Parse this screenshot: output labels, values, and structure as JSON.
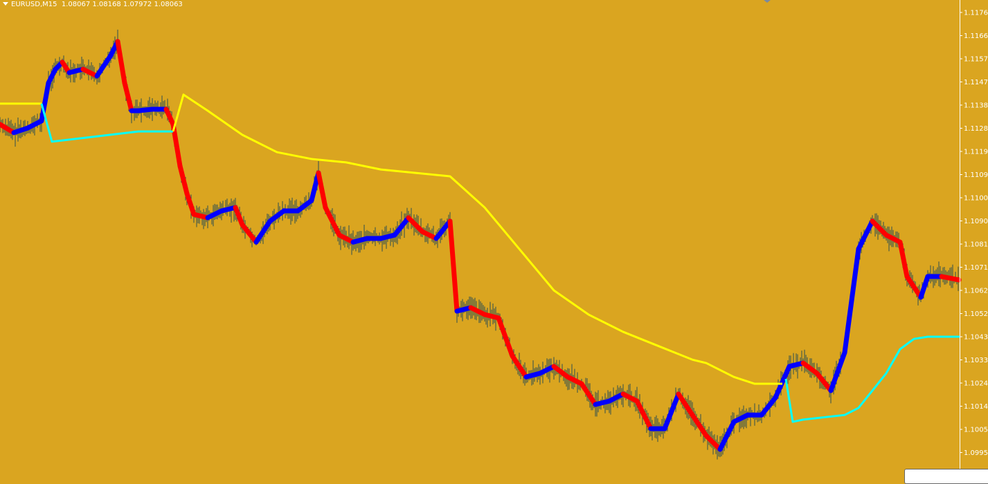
{
  "header": {
    "symbol": "EURUSD,M15",
    "ohlc": "1.08067 1.08168 1.07972 1.08063"
  },
  "colors": {
    "background": "#DAA520",
    "bull": "#0000FF",
    "bear": "#FF0000",
    "wick": "#2F4F4F",
    "ma_up": "#FFFF00",
    "ma_down": "#00FFFF",
    "axis": "#FFFFFF"
  },
  "chart_data": {
    "type": "line",
    "title": "",
    "ylim": [
      1.0991,
      1.1181
    ],
    "y_ticks": [
      "1.11760",
      "1.11665",
      "1.11570",
      "1.11475",
      "1.11380",
      "1.11285",
      "1.11190",
      "1.11095",
      "1.11000",
      "1.10905",
      "1.10810",
      "1.10715",
      "1.10620",
      "1.10525",
      "1.10430",
      "1.10335",
      "1.10240",
      "1.10145",
      "1.10050",
      "1.09955"
    ],
    "grid": false,
    "price_series": [
      [
        0,
        1.11301
      ],
      [
        20,
        1.11267
      ],
      [
        40,
        1.11286
      ],
      [
        60,
        1.11315
      ],
      [
        70,
        1.11471
      ],
      [
        80,
        1.11527
      ],
      [
        90,
        1.11556
      ],
      [
        100,
        1.11513
      ],
      [
        120,
        1.11527
      ],
      [
        140,
        1.11499
      ],
      [
        160,
        1.11584
      ],
      [
        170,
        1.11641
      ],
      [
        180,
        1.11471
      ],
      [
        190,
        1.11357
      ],
      [
        200,
        1.11357
      ],
      [
        220,
        1.11363
      ],
      [
        240,
        1.11363
      ],
      [
        250,
        1.11301
      ],
      [
        260,
        1.1113
      ],
      [
        270,
        1.11017
      ],
      [
        280,
        1.10932
      ],
      [
        300,
        1.10918
      ],
      [
        320,
        1.10946
      ],
      [
        340,
        1.1096
      ],
      [
        350,
        1.10889
      ],
      [
        370,
        1.10818
      ],
      [
        390,
        1.10904
      ],
      [
        410,
        1.10946
      ],
      [
        430,
        1.10946
      ],
      [
        450,
        1.10989
      ],
      [
        460,
        1.11102
      ],
      [
        470,
        1.1096
      ],
      [
        490,
        1.10847
      ],
      [
        510,
        1.10818
      ],
      [
        530,
        1.10833
      ],
      [
        550,
        1.10833
      ],
      [
        570,
        1.10847
      ],
      [
        590,
        1.10918
      ],
      [
        610,
        1.10861
      ],
      [
        630,
        1.10833
      ],
      [
        650,
        1.10904
      ],
      [
        660,
        1.10535
      ],
      [
        680,
        1.10549
      ],
      [
        700,
        1.10521
      ],
      [
        720,
        1.10507
      ],
      [
        740,
        1.10351
      ],
      [
        760,
        1.10265
      ],
      [
        780,
        1.1028
      ],
      [
        800,
        1.10308
      ],
      [
        820,
        1.10265
      ],
      [
        840,
        1.10237
      ],
      [
        860,
        1.10152
      ],
      [
        880,
        1.10166
      ],
      [
        900,
        1.10195
      ],
      [
        920,
        1.10166
      ],
      [
        940,
        1.10053
      ],
      [
        960,
        1.10053
      ],
      [
        980,
        1.10195
      ],
      [
        1000,
        1.10109
      ],
      [
        1020,
        1.10024
      ],
      [
        1040,
        1.09968
      ],
      [
        1060,
        1.10081
      ],
      [
        1080,
        1.10109
      ],
      [
        1100,
        1.10109
      ],
      [
        1120,
        1.1018
      ],
      [
        1140,
        1.10308
      ],
      [
        1160,
        1.10322
      ],
      [
        1180,
        1.1028
      ],
      [
        1200,
        1.10209
      ],
      [
        1220,
        1.10365
      ],
      [
        1240,
        1.1079
      ],
      [
        1260,
        1.10904
      ],
      [
        1280,
        1.10847
      ],
      [
        1300,
        1.10818
      ],
      [
        1310,
        1.10677
      ],
      [
        1330,
        1.10592
      ],
      [
        1340,
        1.10677
      ],
      [
        1360,
        1.10677
      ],
      [
        1385,
        1.10663
      ]
    ],
    "ma_segments": [
      {
        "color": "ma_up",
        "points": [
          [
            0,
            1.11386
          ],
          [
            60,
            1.11386
          ]
        ]
      },
      {
        "color": "ma_down",
        "points": [
          [
            60,
            1.11386
          ],
          [
            75,
            1.1123
          ],
          [
            200,
            1.11272
          ],
          [
            250,
            1.11272
          ]
        ]
      },
      {
        "color": "ma_up",
        "points": [
          [
            250,
            1.11272
          ],
          [
            265,
            1.11423
          ],
          [
            300,
            1.11357
          ],
          [
            350,
            1.11258
          ],
          [
            400,
            1.11187
          ],
          [
            450,
            1.11159
          ],
          [
            500,
            1.11145
          ],
          [
            550,
            1.11116
          ],
          [
            650,
            1.11088
          ],
          [
            700,
            1.1096
          ],
          [
            750,
            1.1079
          ],
          [
            800,
            1.1062
          ],
          [
            850,
            1.10521
          ],
          [
            900,
            1.1045
          ],
          [
            950,
            1.10393
          ],
          [
            1000,
            1.10336
          ],
          [
            1020,
            1.10322
          ],
          [
            1060,
            1.10265
          ],
          [
            1090,
            1.10237
          ],
          [
            1130,
            1.10237
          ]
        ]
      },
      {
        "color": "ma_down",
        "points": [
          [
            1135,
            1.10257
          ],
          [
            1145,
            1.10081
          ],
          [
            1160,
            1.1009
          ],
          [
            1220,
            1.10109
          ],
          [
            1240,
            1.10138
          ],
          [
            1280,
            1.1028
          ],
          [
            1300,
            1.10379
          ],
          [
            1320,
            1.10421
          ],
          [
            1340,
            1.1043
          ],
          [
            1386,
            1.1043
          ]
        ]
      }
    ]
  }
}
